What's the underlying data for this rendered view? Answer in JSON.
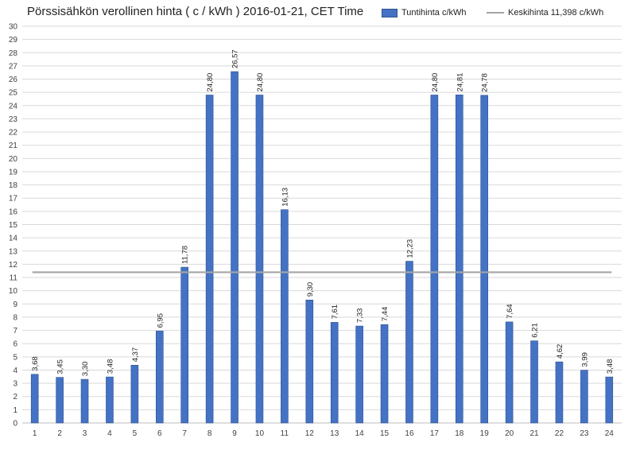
{
  "chart_data": {
    "type": "bar",
    "title": "Pörssisähkön verollinen hinta ( c / kWh ) 2016-01-21, CET Time",
    "categories": [
      "1",
      "2",
      "3",
      "4",
      "5",
      "6",
      "7",
      "8",
      "9",
      "10",
      "11",
      "12",
      "13",
      "14",
      "15",
      "16",
      "17",
      "18",
      "19",
      "20",
      "21",
      "22",
      "23",
      "24"
    ],
    "series": [
      {
        "name": "Tuntihinta c/kWh",
        "type": "bar",
        "color": "#4472c4",
        "values": [
          3.68,
          3.45,
          3.3,
          3.48,
          4.37,
          6.95,
          11.78,
          24.8,
          26.57,
          24.8,
          16.13,
          9.3,
          7.61,
          7.33,
          7.44,
          12.23,
          24.8,
          24.81,
          24.78,
          7.64,
          6.21,
          4.62,
          3.99,
          3.48
        ],
        "labels": [
          "3,68",
          "3,45",
          "3,30",
          "3,48",
          "4,37",
          "6,95",
          "11,78",
          "24,80",
          "26,57",
          "24,80",
          "16,13",
          "9,30",
          "7,61",
          "7,33",
          "7,44",
          "12,23",
          "24,80",
          "24,81",
          "24,78",
          "7,64",
          "6,21",
          "4,62",
          "3,99",
          "3,48"
        ]
      },
      {
        "name": "Keskihinta 11,398 c/kWh",
        "type": "hline",
        "color": "#a5a5a5",
        "value": 11.398
      }
    ],
    "ylim": [
      0,
      30
    ],
    "ytick_step": 1,
    "grid": true,
    "legend": "top-right",
    "xlabel": "",
    "ylabel": ""
  }
}
